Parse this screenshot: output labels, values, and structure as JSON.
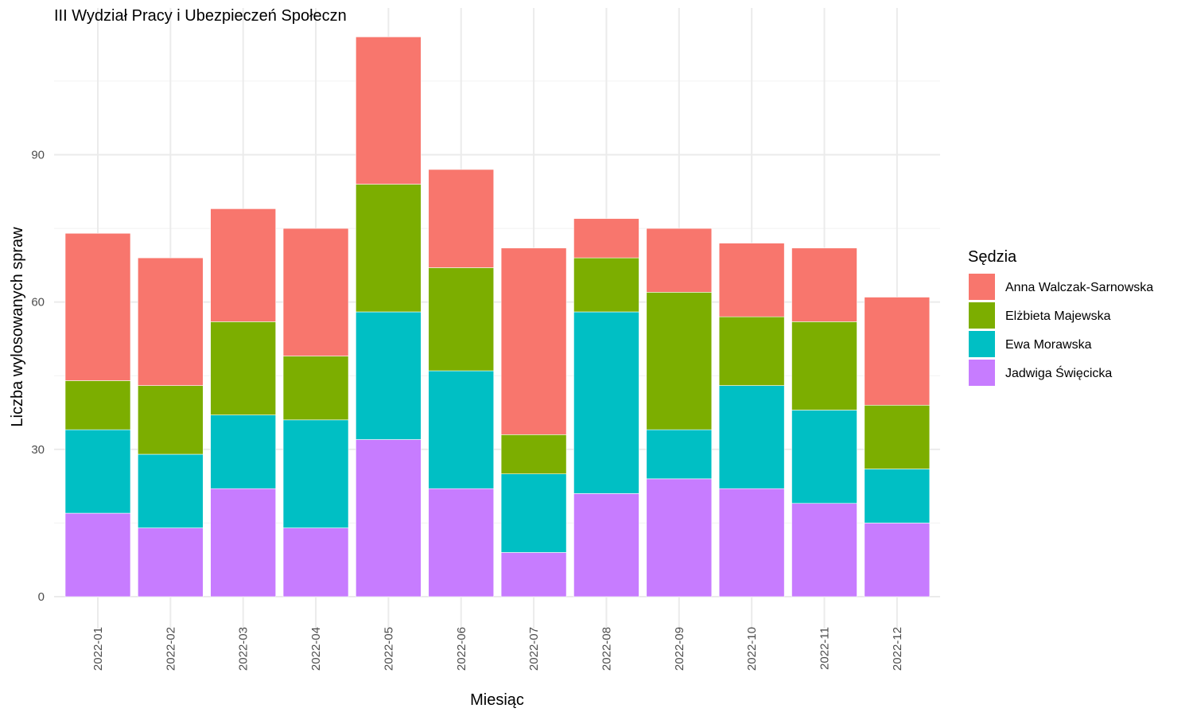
{
  "chart_data": {
    "type": "bar",
    "stacked": true,
    "title": "III Wydział Pracy i Ubezpieczeń Społeczn",
    "xlabel": "Miesiąc",
    "ylabel": "Liczba wylosowanych spraw",
    "ylim": [
      0,
      120
    ],
    "yticks": [
      0,
      30,
      60,
      90
    ],
    "grid": true,
    "legend": {
      "title": "Sędzia",
      "position": "right"
    },
    "categories": [
      "2022-01",
      "2022-02",
      "2022-03",
      "2022-04",
      "2022-05",
      "2022-06",
      "2022-07",
      "2022-08",
      "2022-09",
      "2022-10",
      "2022-11",
      "2022-12"
    ],
    "series": [
      {
        "name": "Jadwiga Święcicka",
        "color": "#C77CFF",
        "values": [
          17,
          14,
          22,
          14,
          32,
          22,
          9,
          21,
          24,
          22,
          19,
          15
        ]
      },
      {
        "name": "Ewa Morawska",
        "color": "#00BFC4",
        "values": [
          17,
          15,
          15,
          22,
          26,
          24,
          16,
          37,
          10,
          21,
          19,
          11
        ]
      },
      {
        "name": "Elżbieta Majewska",
        "color": "#7CAE00",
        "values": [
          10,
          14,
          19,
          13,
          26,
          21,
          8,
          11,
          28,
          14,
          18,
          13
        ]
      },
      {
        "name": "Anna Walczak-Sarnowska",
        "color": "#F8766D",
        "values": [
          30,
          26,
          23,
          26,
          30,
          20,
          38,
          8,
          13,
          15,
          15,
          22
        ]
      }
    ],
    "legend_order": [
      "Anna Walczak-Sarnowska",
      "Elżbieta Majewska",
      "Ewa Morawska",
      "Jadwiga Święcicka"
    ]
  }
}
